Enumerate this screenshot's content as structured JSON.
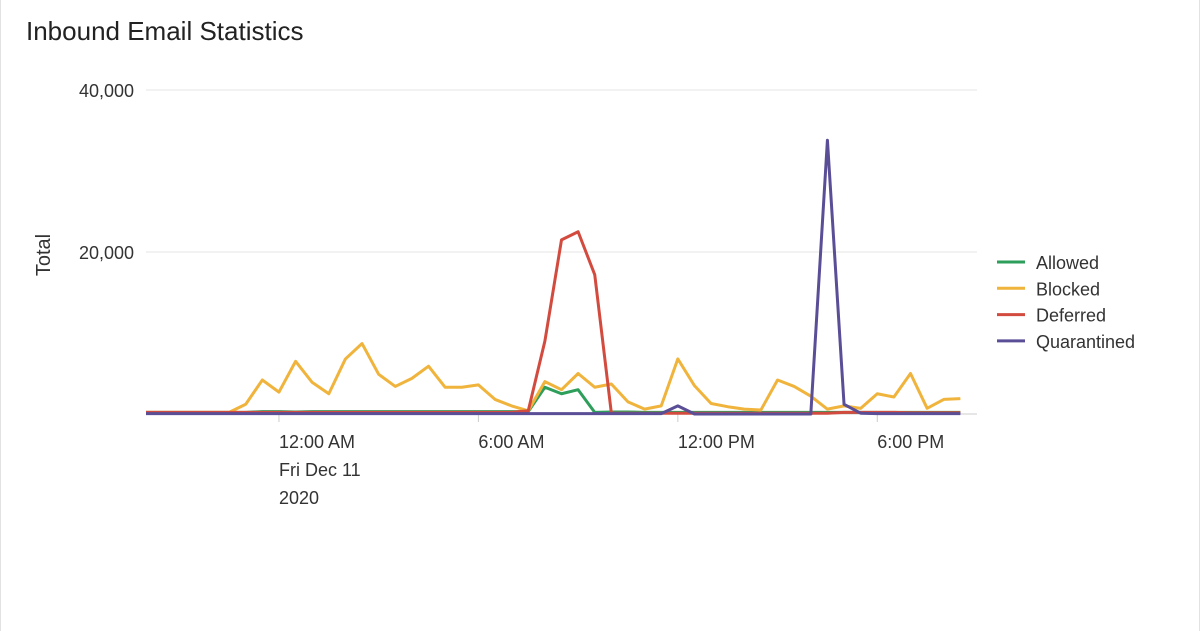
{
  "chart_data": {
    "type": "line",
    "title": "Inbound Email Statistics",
    "y_label": "Total",
    "x": [
      -4,
      -3.5,
      -3,
      -2.5,
      -2,
      -1.5,
      -1,
      -0.5,
      0,
      0.5,
      1,
      1.5,
      2,
      2.5,
      3,
      3.5,
      4,
      4.5,
      5,
      5.5,
      6,
      6.5,
      7,
      7.5,
      8,
      8.5,
      9,
      9.5,
      10,
      10.5,
      11,
      11.5,
      12,
      12.5,
      13,
      13.5,
      14,
      14.5,
      15,
      15.5,
      16,
      16.5,
      17,
      17.5,
      18,
      18.5,
      19,
      19.5,
      20,
      20.5
    ],
    "xlim": [
      -4,
      21
    ],
    "xticks": [
      {
        "value": 0,
        "label": "12:00 AM\nFri Dec 11\n2020"
      },
      {
        "value": 6,
        "label": "6:00 AM"
      },
      {
        "value": 12,
        "label": "12:00 PM"
      },
      {
        "value": 18,
        "label": "6:00 PM"
      }
    ],
    "ylim": [
      0,
      40000
    ],
    "yticks": [
      {
        "value": 20000,
        "label": "20,000"
      },
      {
        "value": 40000,
        "label": "40,000"
      }
    ],
    "grid": true,
    "legend": "right",
    "series": [
      {
        "name": "Allowed",
        "color": "#2e9e5b",
        "values": [
          200,
          200,
          200,
          200,
          200,
          200,
          200,
          300,
          300,
          250,
          300,
          300,
          300,
          300,
          300,
          300,
          300,
          300,
          300,
          300,
          300,
          300,
          300,
          300,
          3300,
          2500,
          3000,
          200,
          250,
          250,
          200,
          200,
          200,
          200,
          200,
          200,
          200,
          200,
          200,
          200,
          200,
          200,
          200,
          200,
          200,
          200,
          200,
          200,
          200,
          200
        ]
      },
      {
        "name": "Blocked",
        "color": "#f0b43c",
        "values": [
          200,
          200,
          200,
          200,
          200,
          200,
          1200,
          4200,
          2700,
          6500,
          3900,
          2500,
          6800,
          8700,
          4900,
          3400,
          4400,
          5900,
          3300,
          3300,
          3600,
          1800,
          1000,
          400,
          4000,
          3000,
          5000,
          3300,
          3700,
          1500,
          600,
          1000,
          6800,
          3500,
          1300,
          900,
          600,
          500,
          4200,
          3400,
          2200,
          600,
          1000,
          700,
          2500,
          2100,
          5000,
          700,
          1800,
          1900
        ]
      },
      {
        "name": "Deferred",
        "color": "#d24b3e",
        "values": [
          200,
          200,
          200,
          200,
          200,
          200,
          200,
          200,
          200,
          200,
          200,
          200,
          200,
          200,
          200,
          200,
          200,
          200,
          200,
          200,
          200,
          200,
          200,
          400,
          9000,
          21500,
          22500,
          17200,
          100,
          100,
          100,
          100,
          100,
          100,
          100,
          100,
          100,
          100,
          100,
          100,
          100,
          100,
          200,
          200,
          200,
          200,
          150,
          150,
          150,
          150
        ]
      },
      {
        "name": "Quarantined",
        "color": "#5a4e96",
        "values": [
          50,
          50,
          50,
          50,
          50,
          50,
          50,
          50,
          50,
          50,
          50,
          50,
          50,
          50,
          50,
          50,
          50,
          50,
          50,
          50,
          50,
          50,
          50,
          50,
          50,
          50,
          50,
          50,
          50,
          50,
          50,
          50,
          1000,
          0,
          0,
          0,
          0,
          0,
          0,
          0,
          0,
          33800,
          1200,
          100,
          50,
          50,
          50,
          50,
          50,
          50
        ]
      }
    ]
  }
}
